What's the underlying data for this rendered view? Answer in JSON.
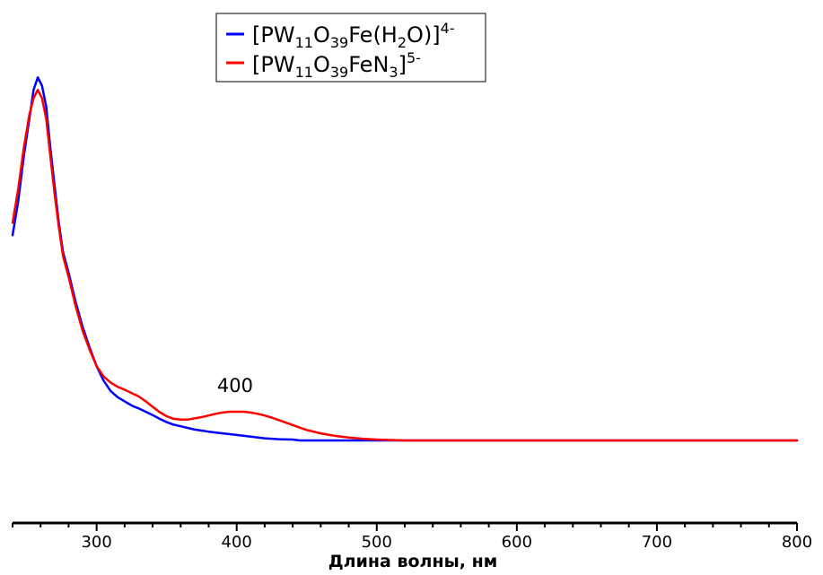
{
  "chart_data": {
    "type": "line",
    "xlabel": "Длина волны, нм",
    "ylabel": "",
    "xlim": [
      240,
      800
    ],
    "ylim": [
      0,
      1
    ],
    "x_ticks": [
      300,
      400,
      500,
      600,
      700,
      800
    ],
    "y_axis_shown": false,
    "grid": false,
    "legend_placement": "top-center",
    "annotations": [
      {
        "text": "400",
        "x": 404,
        "y": 0.155
      }
    ],
    "series": [
      {
        "name": "[PW11O39Fe(H2O)]4-",
        "legend": {
          "base": "[PW",
          "sub1": "11",
          "mid1": "O",
          "sub2": "39",
          "mid2": "Fe(H",
          "sub3": "2",
          "end": "O)]",
          "sup": "4-"
        },
        "color": "#0000ff",
        "points": [
          [
            240,
            0.52
          ],
          [
            244,
            0.6
          ],
          [
            248,
            0.71
          ],
          [
            252,
            0.8
          ],
          [
            255,
            0.87
          ],
          [
            258,
            0.9
          ],
          [
            261,
            0.88
          ],
          [
            264,
            0.83
          ],
          [
            267,
            0.73
          ],
          [
            270,
            0.64
          ],
          [
            273,
            0.55
          ],
          [
            276,
            0.48
          ],
          [
            280,
            0.43
          ],
          [
            285,
            0.36
          ],
          [
            290,
            0.3
          ],
          [
            295,
            0.25
          ],
          [
            300,
            0.205
          ],
          [
            305,
            0.17
          ],
          [
            310,
            0.145
          ],
          [
            315,
            0.13
          ],
          [
            320,
            0.12
          ],
          [
            325,
            0.11
          ],
          [
            330,
            0.103
          ],
          [
            335,
            0.095
          ],
          [
            340,
            0.087
          ],
          [
            345,
            0.078
          ],
          [
            350,
            0.07
          ],
          [
            355,
            0.064
          ],
          [
            360,
            0.06
          ],
          [
            370,
            0.052
          ],
          [
            380,
            0.047
          ],
          [
            390,
            0.043
          ],
          [
            400,
            0.039
          ],
          [
            410,
            0.035
          ],
          [
            420,
            0.031
          ],
          [
            430,
            0.029
          ],
          [
            440,
            0.028
          ],
          [
            445,
            0.026
          ],
          [
            460,
            0.026
          ],
          [
            500,
            0.026
          ],
          [
            600,
            0.026
          ],
          [
            700,
            0.026
          ],
          [
            800,
            0.026
          ]
        ]
      },
      {
        "name": "[PW11O39FeN3]5-",
        "legend": {
          "base": "[PW",
          "sub1": "11",
          "mid1": "O",
          "sub2": "39",
          "mid2": "FeN",
          "sub3": "3",
          "end": "]",
          "sup": "5-"
        },
        "color": "#ff0000",
        "points": [
          [
            240,
            0.55
          ],
          [
            244,
            0.63
          ],
          [
            248,
            0.73
          ],
          [
            252,
            0.81
          ],
          [
            255,
            0.85
          ],
          [
            258,
            0.87
          ],
          [
            261,
            0.85
          ],
          [
            264,
            0.8
          ],
          [
            267,
            0.71
          ],
          [
            270,
            0.62
          ],
          [
            273,
            0.54
          ],
          [
            276,
            0.47
          ],
          [
            280,
            0.42
          ],
          [
            285,
            0.35
          ],
          [
            290,
            0.29
          ],
          [
            295,
            0.245
          ],
          [
            300,
            0.205
          ],
          [
            305,
            0.18
          ],
          [
            310,
            0.165
          ],
          [
            315,
            0.155
          ],
          [
            320,
            0.148
          ],
          [
            325,
            0.14
          ],
          [
            330,
            0.132
          ],
          [
            335,
            0.12
          ],
          [
            340,
            0.107
          ],
          [
            345,
            0.094
          ],
          [
            350,
            0.084
          ],
          [
            355,
            0.078
          ],
          [
            360,
            0.076
          ],
          [
            365,
            0.076
          ],
          [
            370,
            0.079
          ],
          [
            375,
            0.082
          ],
          [
            380,
            0.086
          ],
          [
            385,
            0.09
          ],
          [
            390,
            0.093
          ],
          [
            395,
            0.095
          ],
          [
            400,
            0.095
          ],
          [
            405,
            0.095
          ],
          [
            410,
            0.093
          ],
          [
            415,
            0.09
          ],
          [
            420,
            0.086
          ],
          [
            425,
            0.081
          ],
          [
            430,
            0.075
          ],
          [
            440,
            0.063
          ],
          [
            450,
            0.051
          ],
          [
            460,
            0.043
          ],
          [
            470,
            0.037
          ],
          [
            480,
            0.033
          ],
          [
            490,
            0.03
          ],
          [
            500,
            0.028
          ],
          [
            510,
            0.027
          ],
          [
            520,
            0.026
          ],
          [
            600,
            0.026
          ],
          [
            700,
            0.026
          ],
          [
            800,
            0.026
          ]
        ]
      }
    ]
  }
}
